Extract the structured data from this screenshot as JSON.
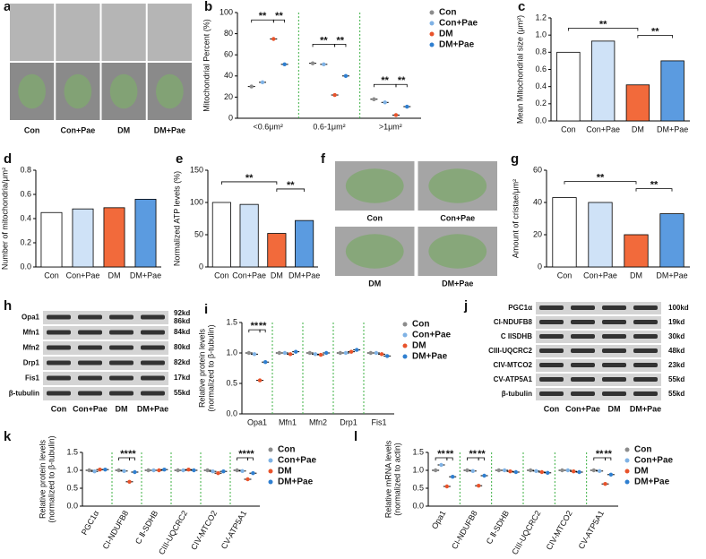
{
  "chart_data": [
    {
      "type": "dot",
      "panel": "b",
      "ylabel": [
        "Mitochondrial Percent (%)"
      ],
      "categories": [
        "<0.6μm²",
        "0.6-1μm²",
        ">1μm²"
      ],
      "series": [
        {
          "name": "Con",
          "color": "#8c8c8c",
          "values": [
            30,
            52,
            18
          ]
        },
        {
          "name": "Con+Pae",
          "color": "#7fb2e5",
          "values": [
            34,
            51,
            15
          ]
        },
        {
          "name": "DM",
          "color": "#e8532b",
          "values": [
            75,
            22,
            3
          ]
        },
        {
          "name": "DM+Pae",
          "color": "#2f7fd0",
          "values": [
            51,
            40,
            11
          ]
        }
      ],
      "ylim": [
        0,
        100
      ],
      "yticks": [
        0,
        20,
        40,
        60,
        80,
        100
      ],
      "annotations": [
        "**",
        "**",
        "**",
        "**",
        "**",
        "**"
      ]
    },
    {
      "type": "bar",
      "panel": "c",
      "ylabel": [
        "Mean Mitochondrial size (μm²)"
      ],
      "categories": [
        "Con",
        "Con+Pae",
        "DM",
        "DM+Pae"
      ],
      "values": [
        0.8,
        0.93,
        0.42,
        0.7
      ],
      "colors": [
        "#ffffff",
        "#cfe2f7",
        "#f26a3b",
        "#5b9be0"
      ],
      "ylim": [
        0,
        1.2
      ],
      "yticks": [
        {
          "value": 0,
          "label": "0.0"
        },
        0.2,
        0.4,
        0.6,
        0.8,
        {
          "value": 1,
          "label": "1.0"
        },
        1.2
      ],
      "annotations": [
        "**",
        "**"
      ]
    },
    {
      "type": "bar",
      "panel": "d",
      "ylabel": [
        "Number of mitochondria/μm²"
      ],
      "categories": [
        "Con",
        "Con+Pae",
        "DM",
        "DM+Pae"
      ],
      "values": [
        0.45,
        0.48,
        0.49,
        0.56
      ],
      "colors": [
        "#ffffff",
        "#cfe2f7",
        "#f26a3b",
        "#5b9be0"
      ],
      "ylim": [
        0,
        0.8
      ],
      "yticks": [
        {
          "value": 0,
          "label": "0.0"
        },
        0.2,
        0.4,
        0.6,
        0.8
      ],
      "annotations": []
    },
    {
      "type": "bar",
      "panel": "e",
      "ylabel": [
        "Normalized ATP levels (%)"
      ],
      "categories": [
        "Con",
        "Con+Pae",
        "DM",
        "DM+Pae"
      ],
      "values": [
        100,
        97,
        52,
        72
      ],
      "colors": [
        "#ffffff",
        "#cfe2f7",
        "#f26a3b",
        "#5b9be0"
      ],
      "ylim": [
        0,
        150
      ],
      "yticks": [
        0,
        50,
        100,
        150
      ],
      "annotations": [
        "**",
        "**"
      ]
    },
    {
      "type": "bar",
      "panel": "g",
      "ylabel": [
        "Amount of cristae/μm²"
      ],
      "categories": [
        "Con",
        "Con+Pae",
        "DM",
        "DM+Pae"
      ],
      "values": [
        43,
        40,
        20,
        33
      ],
      "colors": [
        "#ffffff",
        "#cfe2f7",
        "#f26a3b",
        "#5b9be0"
      ],
      "ylim": [
        0,
        60
      ],
      "yticks": [
        0,
        20,
        40,
        60
      ],
      "annotations": [
        "**",
        "**"
      ]
    },
    {
      "type": "dot",
      "panel": "i",
      "ylabel": [
        "Relative protein levels",
        "(normalized to β-tubulin)"
      ],
      "categories": [
        "Opa1",
        "Mfn1",
        "Mfn2",
        "Drp1",
        "Fis1"
      ],
      "series": [
        {
          "name": "Con",
          "color": "#8c8c8c",
          "values": [
            1.0,
            1.0,
            1.0,
            1.0,
            1.0
          ]
        },
        {
          "name": "Con+Pae",
          "color": "#7fb2e5",
          "values": [
            0.98,
            1.0,
            0.98,
            1.0,
            1.0
          ]
        },
        {
          "name": "DM",
          "color": "#e8532b",
          "values": [
            0.55,
            0.98,
            0.97,
            1.02,
            0.98
          ]
        },
        {
          "name": "DM+Pae",
          "color": "#2f7fd0",
          "values": [
            0.85,
            1.02,
            1.0,
            1.05,
            0.95
          ]
        }
      ],
      "ylim": [
        0,
        1.5
      ],
      "yticks": [
        {
          "value": 0,
          "label": "0.0"
        },
        0.5,
        {
          "value": 1,
          "label": "1.0"
        },
        1.5
      ],
      "annotations": [
        "**",
        "**"
      ]
    },
    {
      "type": "dot",
      "panel": "k",
      "ylabel": [
        "Relative protein levels",
        "(normalized to β-tubulin)"
      ],
      "categories": [
        "PGC1α",
        "CI-NDUFB8",
        "C Ⅱ-SDHB",
        "CIII-UQCRC2",
        "CIV-MTCO2",
        "CV-ATP5A1"
      ],
      "series": [
        {
          "name": "Con",
          "color": "#8c8c8c",
          "values": [
            1.0,
            1.0,
            1.0,
            1.0,
            1.0,
            1.0
          ]
        },
        {
          "name": "Con+Pae",
          "color": "#7fb2e5",
          "values": [
            0.97,
            0.98,
            1.0,
            1.0,
            0.97,
            0.98
          ]
        },
        {
          "name": "DM",
          "color": "#e8532b",
          "values": [
            1.02,
            0.68,
            1.0,
            1.02,
            0.92,
            0.75
          ]
        },
        {
          "name": "DM+Pae",
          "color": "#2f7fd0",
          "values": [
            1.02,
            0.95,
            1.02,
            1.0,
            0.97,
            0.92
          ]
        }
      ],
      "ylim": [
        0,
        1.5
      ],
      "yticks": [
        {
          "value": 0,
          "label": "0.0"
        },
        0.5,
        {
          "value": 1,
          "label": "1.0"
        },
        1.5
      ],
      "annotations": [
        "**",
        "**",
        "**",
        "**"
      ]
    },
    {
      "type": "dot",
      "panel": "l",
      "ylabel": [
        "Relative mRNA levels",
        "(normalized to actin)"
      ],
      "categories": [
        "Opa1",
        "CI-NDUFB8",
        "C Ⅱ-SDHB",
        "CIII-UQCRC2",
        "CIV-MTCO2",
        "CV-ATP5A1"
      ],
      "series": [
        {
          "name": "Con",
          "color": "#8c8c8c",
          "values": [
            1.0,
            1.0,
            1.0,
            1.0,
            1.0,
            1.0
          ]
        },
        {
          "name": "Con+Pae",
          "color": "#7fb2e5",
          "values": [
            1.15,
            0.98,
            1.0,
            0.98,
            1.0,
            0.98
          ]
        },
        {
          "name": "DM",
          "color": "#e8532b",
          "values": [
            0.55,
            0.57,
            0.97,
            0.95,
            0.97,
            0.62
          ]
        },
        {
          "name": "DM+Pae",
          "color": "#2f7fd0",
          "values": [
            0.82,
            0.85,
            0.95,
            0.93,
            0.95,
            0.88
          ]
        }
      ],
      "ylim": [
        0,
        1.5
      ],
      "yticks": [
        {
          "value": 0,
          "label": "0.0"
        },
        0.5,
        {
          "value": 1,
          "label": "1.0"
        },
        1.5
      ],
      "annotations": [
        "**",
        "**",
        "**",
        "**",
        "**",
        "**"
      ]
    }
  ],
  "images": [
    {
      "panel": "a",
      "labels": [
        "Con",
        "Con+Pae",
        "DM",
        "DM+Pae"
      ]
    },
    {
      "panel": "f",
      "labels": [
        "Con",
        "Con+Pae",
        "DM",
        "DM+Pae"
      ]
    }
  ],
  "blots": [
    {
      "panel": "h",
      "rows": [
        {
          "name": "Opa1",
          "sizes": [
            "92kd",
            "86kd"
          ]
        },
        {
          "name": "Mfn1",
          "sizes": [
            "84kd"
          ]
        },
        {
          "name": "Mfn2",
          "sizes": [
            "80kd"
          ]
        },
        {
          "name": "Drp1",
          "sizes": [
            "82kd"
          ]
        },
        {
          "name": "Fis1",
          "sizes": [
            "17kd"
          ]
        },
        {
          "name": "β-tubulin",
          "sizes": [
            "55kd"
          ]
        }
      ],
      "lanes": [
        "Con",
        "Con+Pae",
        "DM",
        "DM+Pae"
      ]
    },
    {
      "panel": "j",
      "rows": [
        {
          "name": "PGC1α",
          "sizes": [
            "100kd"
          ]
        },
        {
          "name": "CI-NDUFB8",
          "sizes": [
            "19kd"
          ]
        },
        {
          "name": "C IISDHB",
          "sizes": [
            "30kd"
          ]
        },
        {
          "name": "CIII-UQCRC2",
          "sizes": [
            "48kd"
          ]
        },
        {
          "name": "CIV-MTCO2",
          "sizes": [
            "23kd"
          ]
        },
        {
          "name": "CV-ATP5A1",
          "sizes": [
            "55kd"
          ]
        },
        {
          "name": "β-tubulin",
          "sizes": [
            "55kd"
          ]
        }
      ],
      "lanes": [
        "Con",
        "Con+Pae",
        "DM",
        "DM+Pae"
      ]
    }
  ]
}
